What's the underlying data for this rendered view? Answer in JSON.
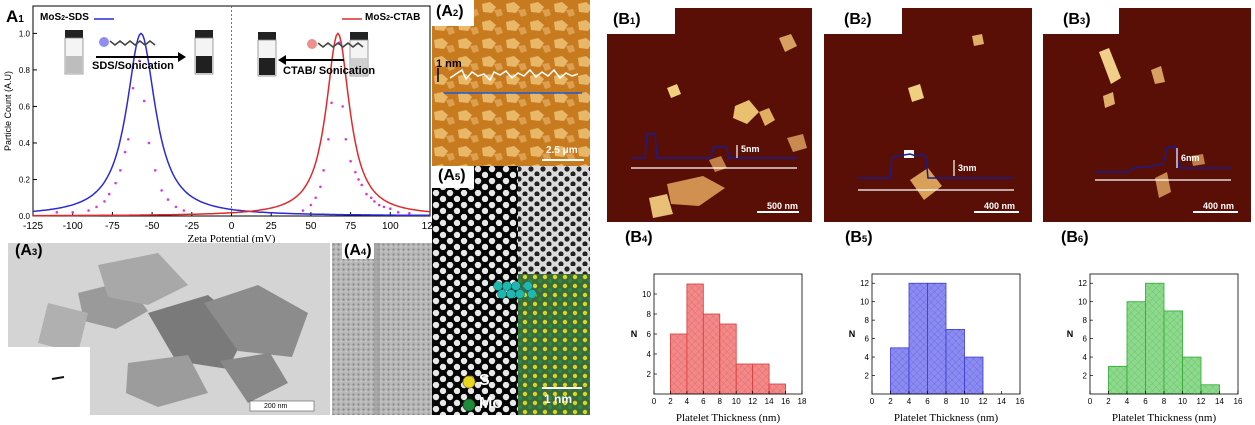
{
  "figure": {
    "labels": {
      "A1": {
        "main": "A",
        "sub": "1"
      },
      "A2": {
        "main": "(A",
        "sub": "2",
        "close": ")"
      },
      "A3": {
        "main": "(A",
        "sub": "3",
        "close": ")"
      },
      "A4": {
        "main": "(A",
        "sub": "4",
        "close": ")"
      },
      "A5": {
        "main": "(A",
        "sub": "5",
        "close": ")"
      },
      "B1": {
        "main": "(B",
        "sub": "1",
        "close": ")"
      },
      "B2": {
        "main": "(B",
        "sub": "2",
        "close": ")"
      },
      "B3": {
        "main": "(B",
        "sub": "3",
        "close": ")"
      },
      "B4": {
        "main": "(B",
        "sub": "4",
        "close": ")"
      },
      "B5": {
        "main": "(B",
        "sub": "5",
        "close": ")"
      },
      "B6": {
        "main": "(B",
        "sub": "6",
        "close": ")"
      }
    },
    "zeta": {
      "legend_left": "MoS",
      "legend_left_sub": "2",
      "legend_left_suffix": "-SDS",
      "legend_right": "MoS",
      "legend_right_sub": "2",
      "legend_right_suffix": "-CTAB",
      "left_arrow_text": "SDS/Sonication",
      "right_arrow_text": "CTAB/ Sonication",
      "colors": {
        "sds": "#2a2ad8",
        "ctab": "#e02a2a",
        "dots": "#d93ad9"
      }
    },
    "a2": {
      "height_label": "1 nm",
      "scale_bar": "2.5 μm"
    },
    "a3": {
      "scale_bar": "200 nm"
    },
    "a5": {
      "s_label": "S",
      "mo_label": "Mo",
      "scale_bar": "1 nm"
    },
    "b_afm": [
      {
        "step_label": "5nm",
        "scale_bar": "500 nm"
      },
      {
        "step_label": "3nm",
        "scale_bar": "400 nm"
      },
      {
        "step_label": "6nm",
        "scale_bar": "400 nm"
      }
    ]
  },
  "chart_data": [
    {
      "type": "line",
      "xlabel": "Zeta Potential (mV)",
      "ylabel": "Particle Count (A.U)",
      "xlim": [
        -125,
        125
      ],
      "ylim": [
        0,
        1.15
      ],
      "xticks": [
        -125,
        -100,
        -75,
        -50,
        -25,
        0,
        25,
        50,
        75,
        100,
        125
      ],
      "xtick_labels": [
        "-125",
        "-100",
        "-75",
        "-50",
        "-25",
        "0",
        "25",
        "50",
        "75",
        "100",
        "125"
      ],
      "yticks": [
        0.0,
        0.2,
        0.4,
        0.6,
        0.8,
        1.0
      ],
      "ytick_labels": [
        "0.0",
        "0.2",
        "0.4",
        "0.6",
        "0.8",
        "1.0"
      ],
      "series": [
        {
          "name": "MoS2-SDS",
          "color": "#2a2ad8",
          "peak_x": -57,
          "peak_y": 1.0,
          "width": 11
        },
        {
          "name": "MoS2-CTAB",
          "color": "#e02a2a",
          "peak_x": 67,
          "peak_y": 1.0,
          "width": 9
        }
      ],
      "scatter_points": [
        [
          -90,
          0.03
        ],
        [
          -85,
          0.05
        ],
        [
          -80,
          0.08
        ],
        [
          -77,
          0.12
        ],
        [
          -73,
          0.18
        ],
        [
          -70,
          0.25
        ],
        [
          -67,
          0.35
        ],
        [
          -65,
          0.42
        ],
        [
          -62,
          0.7
        ],
        [
          -58,
          0.85
        ],
        [
          -55,
          0.63
        ],
        [
          -52,
          0.4
        ],
        [
          -48,
          0.25
        ],
        [
          -44,
          0.14
        ],
        [
          -40,
          0.09
        ],
        [
          -35,
          0.05
        ],
        [
          -30,
          0.03
        ],
        [
          -110,
          0.02
        ],
        [
          -100,
          0.02
        ],
        [
          45,
          0.03
        ],
        [
          50,
          0.06
        ],
        [
          53,
          0.1
        ],
        [
          56,
          0.16
        ],
        [
          58,
          0.25
        ],
        [
          61,
          0.42
        ],
        [
          63,
          0.62
        ],
        [
          65,
          0.8
        ],
        [
          68,
          0.95
        ],
        [
          70,
          0.6
        ],
        [
          72,
          0.42
        ],
        [
          75,
          0.3
        ],
        [
          78,
          0.24
        ],
        [
          80,
          0.2
        ],
        [
          82,
          0.17
        ],
        [
          85,
          0.12
        ],
        [
          88,
          0.1
        ],
        [
          90,
          0.08
        ],
        [
          93,
          0.06
        ],
        [
          96,
          0.05
        ],
        [
          100,
          0.04
        ],
        [
          105,
          0.02
        ],
        [
          112,
          0.015
        ]
      ]
    },
    {
      "type": "bar",
      "title": "",
      "xlabel": "Platelet Thickness (nm)",
      "ylabel": "N",
      "xlim": [
        0,
        18
      ],
      "ylim": [
        0,
        12
      ],
      "xticks": [
        0,
        2,
        4,
        6,
        8,
        10,
        12,
        14,
        16,
        18
      ],
      "yticks": [
        2,
        4,
        6,
        8,
        10
      ],
      "bin_edges": [
        2,
        4,
        6,
        8,
        10,
        12,
        14,
        16
      ],
      "values": [
        6,
        11,
        8,
        7,
        3,
        3,
        1
      ],
      "color": "#f28a8a",
      "edge": "#d83a3a"
    },
    {
      "type": "bar",
      "title": "",
      "xlabel": "Platelet Thickness (nm)",
      "ylabel": "N",
      "xlim": [
        0,
        16
      ],
      "ylim": [
        0,
        13
      ],
      "xticks": [
        0,
        2,
        4,
        6,
        8,
        10,
        12,
        14,
        16
      ],
      "yticks": [
        2,
        4,
        6,
        8,
        10,
        12
      ],
      "bin_edges": [
        2,
        4,
        6,
        8,
        10,
        12
      ],
      "values": [
        5,
        12,
        12,
        7,
        4
      ],
      "color": "#8c8cf0",
      "edge": "#3a3ad8"
    },
    {
      "type": "bar",
      "title": "",
      "xlabel": "Platelet Thickness (nm)",
      "ylabel": "N",
      "xlim": [
        0,
        16
      ],
      "ylim": [
        0,
        13
      ],
      "xticks": [
        0,
        2,
        4,
        6,
        8,
        10,
        12,
        14,
        16
      ],
      "yticks": [
        2,
        4,
        6,
        8,
        10,
        12
      ],
      "bin_edges": [
        2,
        4,
        6,
        8,
        10,
        12,
        14
      ],
      "values": [
        3,
        10,
        12,
        9,
        4,
        1
      ],
      "color": "#8fd98f",
      "edge": "#2fa82f"
    }
  ]
}
